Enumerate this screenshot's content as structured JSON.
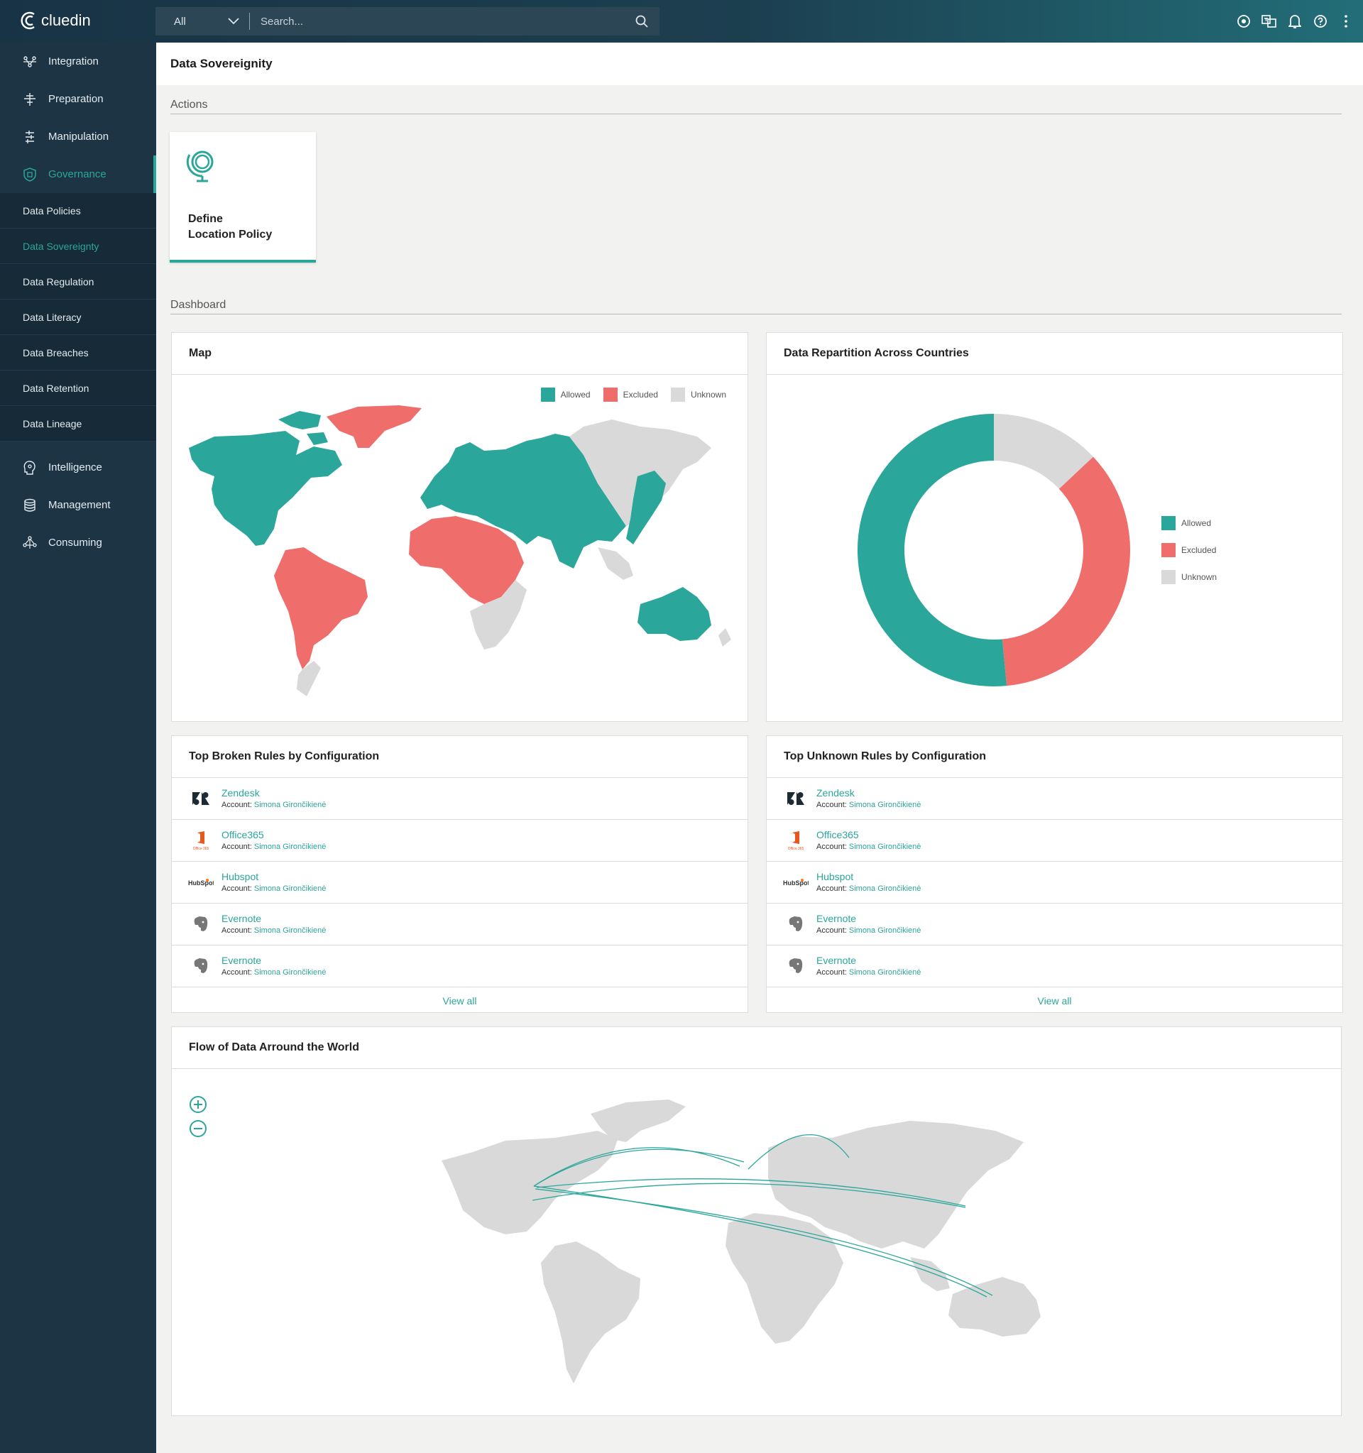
{
  "app": {
    "brand": "cluedin",
    "accent": "#2ba69b",
    "excluded_color": "#ef6d6b",
    "unknown_color": "#d9d9d9"
  },
  "search": {
    "scope": "All",
    "placeholder": "Search..."
  },
  "topbar_icons": [
    "eye-icon",
    "translate-icon",
    "bell-icon",
    "help-icon",
    "more-icon"
  ],
  "sidebar": {
    "main": [
      {
        "label": "Integration",
        "icon": "integration-icon"
      },
      {
        "label": "Preparation",
        "icon": "preparation-icon"
      },
      {
        "label": "Manipulation",
        "icon": "manipulation-icon"
      },
      {
        "label": "Governance",
        "icon": "governance-icon",
        "active": true
      }
    ],
    "sub": [
      {
        "label": "Data Policies"
      },
      {
        "label": "Data Sovereignty",
        "active": true
      },
      {
        "label": "Data Regulation"
      },
      {
        "label": "Data Literacy"
      },
      {
        "label": "Data Breaches"
      },
      {
        "label": "Data Retention"
      },
      {
        "label": "Data Lineage"
      }
    ],
    "lower": [
      {
        "label": "Intelligence",
        "icon": "intelligence-icon"
      },
      {
        "label": "Management",
        "icon": "management-icon"
      },
      {
        "label": "Consuming",
        "icon": "consuming-icon"
      }
    ]
  },
  "page": {
    "title": "Data Sovereignity"
  },
  "actions": {
    "label": "Actions",
    "card": {
      "line1": "Define",
      "line2": "Location Policy",
      "icon": "globe-icon"
    }
  },
  "dashboard": {
    "label": "Dashboard"
  },
  "map_panel": {
    "title": "Map",
    "legend": [
      "Allowed",
      "Excluded",
      "Unknown"
    ]
  },
  "donut_panel": {
    "title": "Data Repartition Across Countries",
    "legend": [
      "Allowed",
      "Excluded",
      "Unknown"
    ]
  },
  "chart_data": {
    "type": "pie",
    "categories": [
      "Allowed",
      "Excluded",
      "Unknown"
    ],
    "values": [
      51.5,
      35.5,
      13
    ],
    "colors": [
      "#2ba69b",
      "#ef6d6b",
      "#d9d9d9"
    ],
    "title": "Data Repartition Across Countries",
    "legend_position": "right",
    "donut": true
  },
  "broken_rules": {
    "title": "Top Broken Rules by Configuration",
    "account_label": "Account:",
    "rows": [
      {
        "name": "Zendesk",
        "account": "Simona Girončikienė",
        "logo": "zendesk-icon"
      },
      {
        "name": "Office365",
        "account": "Simona Girončikienė",
        "logo": "office365-icon"
      },
      {
        "name": "Hubspot",
        "account": "Simona Girončikienė",
        "logo": "hubspot-icon"
      },
      {
        "name": "Evernote",
        "account": "Simona Girončikienė",
        "logo": "evernote-icon"
      },
      {
        "name": "Evernote",
        "account": "Simona Girončikienė",
        "logo": "evernote-icon"
      }
    ],
    "view_all": "View all"
  },
  "unknown_rules": {
    "title": "Top Unknown Rules by Configuration",
    "account_label": "Account:",
    "rows": [
      {
        "name": "Zendesk",
        "account": "Simona Girončikienė",
        "logo": "zendesk-icon"
      },
      {
        "name": "Office365",
        "account": "Simona Girončikienė",
        "logo": "office365-icon"
      },
      {
        "name": "Hubspot",
        "account": "Simona Girončikienė",
        "logo": "hubspot-icon"
      },
      {
        "name": "Evernote",
        "account": "Simona Girončikienė",
        "logo": "evernote-icon"
      },
      {
        "name": "Evernote",
        "account": "Simona Girončikienė",
        "logo": "evernote-icon"
      }
    ],
    "view_all": "View all"
  },
  "flow_panel": {
    "title": "Flow of Data Arround the World",
    "zoom_in_icon": "zoom-in-icon",
    "zoom_out_icon": "zoom-out-icon"
  }
}
